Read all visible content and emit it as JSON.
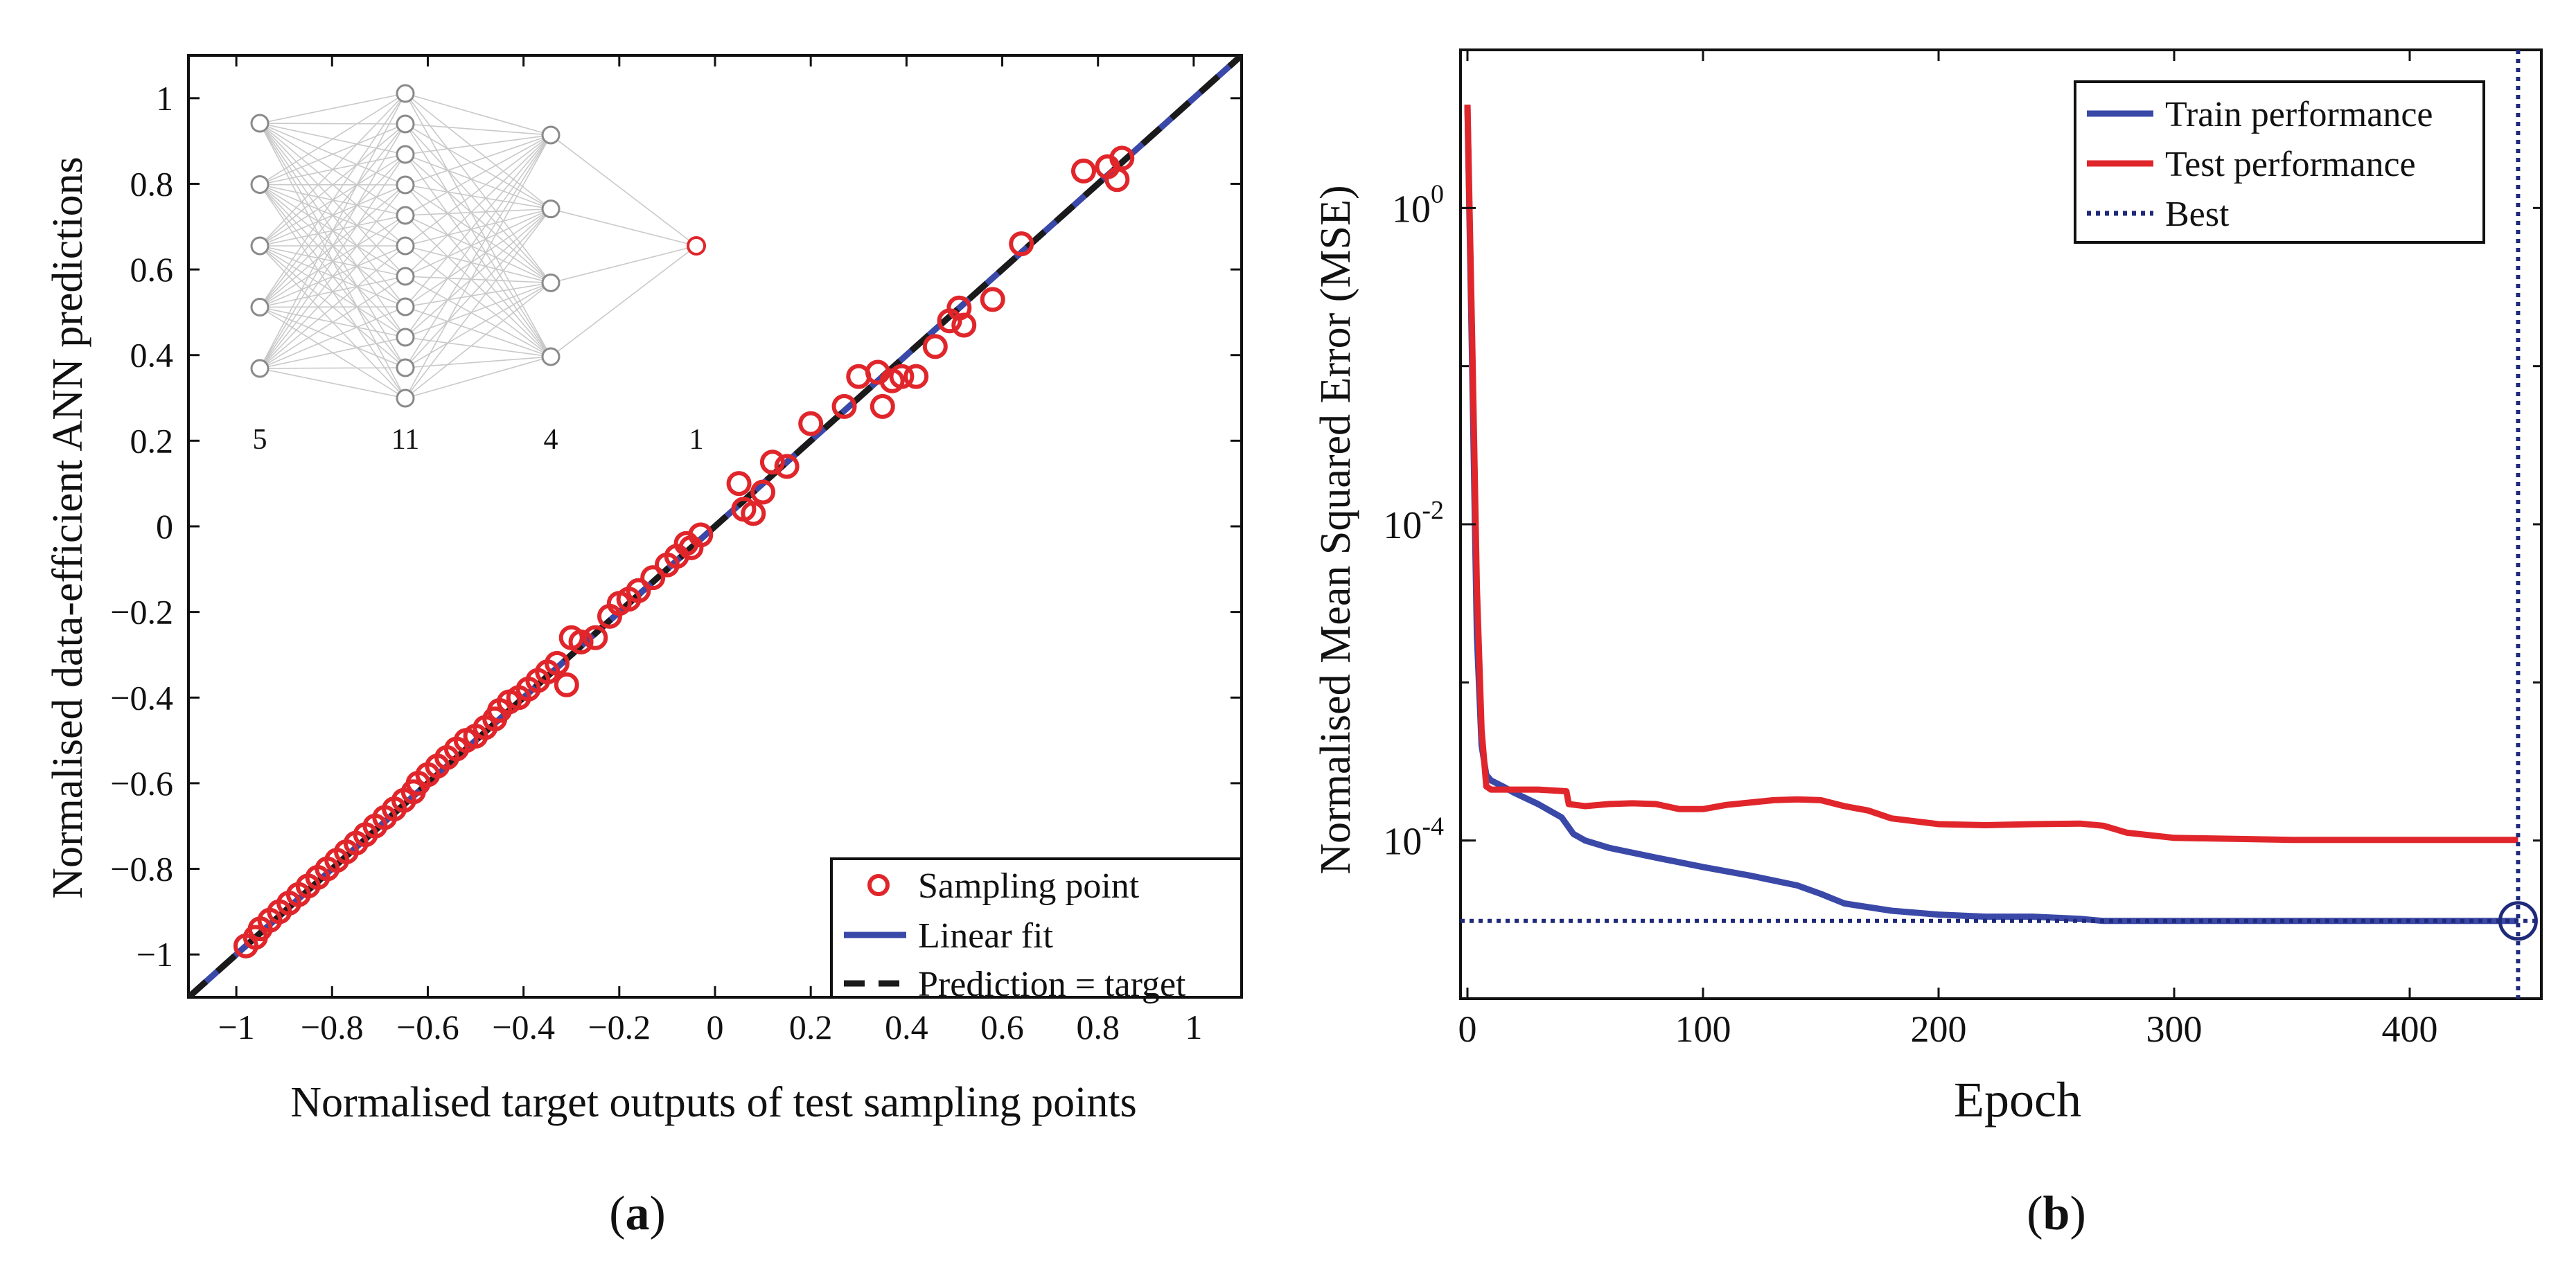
{
  "chart_data": [
    {
      "id": "a",
      "type": "scatter",
      "panel_label": "a",
      "xlabel": "Normalised target outputs of test sampling points",
      "ylabel": "Normalised data-efficient ANN predictions",
      "xlim": [
        -1.1,
        1.1
      ],
      "ylim": [
        -1.1,
        1.1
      ],
      "xticks": [
        -1,
        -0.8,
        -0.6,
        -0.4,
        -0.2,
        0,
        0.2,
        0.4,
        0.6,
        0.8,
        1
      ],
      "xtick_labels": [
        "−1",
        "−0.8",
        "−0.6",
        "−0.4",
        "−0.2",
        "0",
        "0.2",
        "0.4",
        "0.6",
        "0.8",
        "1"
      ],
      "yticks": [
        -1,
        -0.8,
        -0.6,
        -0.4,
        -0.2,
        0,
        0.2,
        0.4,
        0.6,
        0.8,
        1
      ],
      "ytick_labels": [
        "−1",
        "−0.8",
        "−0.6",
        "−0.4",
        "−0.2",
        "0",
        "0.2",
        "0.4",
        "0.6",
        "0.8",
        "1"
      ],
      "legend_position": "bottom-right",
      "series": [
        {
          "name": "Sampling point",
          "kind": "markers",
          "color": "#e0262b",
          "points": [
            [
              -0.98,
              -0.98
            ],
            [
              -0.96,
              -0.96
            ],
            [
              -0.95,
              -0.94
            ],
            [
              -0.93,
              -0.92
            ],
            [
              -0.91,
              -0.9
            ],
            [
              -0.89,
              -0.88
            ],
            [
              -0.87,
              -0.86
            ],
            [
              -0.85,
              -0.84
            ],
            [
              -0.83,
              -0.82
            ],
            [
              -0.81,
              -0.8
            ],
            [
              -0.79,
              -0.78
            ],
            [
              -0.77,
              -0.76
            ],
            [
              -0.75,
              -0.74
            ],
            [
              -0.73,
              -0.72
            ],
            [
              -0.71,
              -0.7
            ],
            [
              -0.69,
              -0.68
            ],
            [
              -0.67,
              -0.66
            ],
            [
              -0.65,
              -0.64
            ],
            [
              -0.63,
              -0.62
            ],
            [
              -0.62,
              -0.6
            ],
            [
              -0.6,
              -0.58
            ],
            [
              -0.58,
              -0.56
            ],
            [
              -0.56,
              -0.54
            ],
            [
              -0.54,
              -0.52
            ],
            [
              -0.52,
              -0.5
            ],
            [
              -0.5,
              -0.49
            ],
            [
              -0.48,
              -0.47
            ],
            [
              -0.46,
              -0.45
            ],
            [
              -0.45,
              -0.43
            ],
            [
              -0.43,
              -0.41
            ],
            [
              -0.41,
              -0.4
            ],
            [
              -0.39,
              -0.38
            ],
            [
              -0.37,
              -0.36
            ],
            [
              -0.35,
              -0.34
            ],
            [
              -0.33,
              -0.32
            ],
            [
              -0.31,
              -0.37
            ],
            [
              -0.3,
              -0.26
            ],
            [
              -0.28,
              -0.27
            ],
            [
              -0.25,
              -0.26
            ],
            [
              -0.22,
              -0.21
            ],
            [
              -0.2,
              -0.18
            ],
            [
              -0.18,
              -0.17
            ],
            [
              -0.16,
              -0.15
            ],
            [
              -0.13,
              -0.12
            ],
            [
              -0.1,
              -0.09
            ],
            [
              -0.08,
              -0.07
            ],
            [
              -0.06,
              -0.04
            ],
            [
              -0.05,
              -0.05
            ],
            [
              -0.03,
              -0.02
            ],
            [
              0.05,
              0.1
            ],
            [
              0.06,
              0.04
            ],
            [
              0.08,
              0.03
            ],
            [
              0.1,
              0.08
            ],
            [
              0.12,
              0.15
            ],
            [
              0.15,
              0.14
            ],
            [
              0.2,
              0.24
            ],
            [
              0.27,
              0.28
            ],
            [
              0.3,
              0.35
            ],
            [
              0.34,
              0.36
            ],
            [
              0.35,
              0.28
            ],
            [
              0.37,
              0.34
            ],
            [
              0.39,
              0.35
            ],
            [
              0.42,
              0.35
            ],
            [
              0.46,
              0.42
            ],
            [
              0.49,
              0.48
            ],
            [
              0.51,
              0.51
            ],
            [
              0.52,
              0.47
            ],
            [
              0.58,
              0.53
            ],
            [
              0.64,
              0.66
            ],
            [
              0.77,
              0.83
            ],
            [
              0.82,
              0.84
            ],
            [
              0.84,
              0.81
            ],
            [
              0.85,
              0.86
            ]
          ]
        },
        {
          "name": "Linear fit",
          "kind": "line",
          "color": "#3a48a8",
          "x": [
            -1.1,
            1.1
          ],
          "y": [
            -1.1,
            1.1
          ]
        },
        {
          "name": "Prediction = target",
          "kind": "dashed-line",
          "color": "#1a1a1a",
          "x": [
            -1.1,
            1.1
          ],
          "y": [
            -1.1,
            1.1
          ]
        }
      ],
      "inset_network": {
        "layers": [
          5,
          11,
          4,
          1
        ],
        "layer_labels": [
          "5",
          "11",
          "4",
          "1"
        ]
      }
    },
    {
      "id": "b",
      "type": "line",
      "panel_label": "b",
      "xlabel": "Epoch",
      "ylabel": "Normalised Mean Squared Error (MSE)",
      "xlim": [
        0,
        450
      ],
      "ylim": [
        1e-05,
        10
      ],
      "yscale": "log",
      "xticks": [
        0,
        100,
        200,
        300,
        400
      ],
      "xtick_labels": [
        "0",
        "100",
        "200",
        "300",
        "400"
      ],
      "yticks": [
        0.0001,
        0.01,
        1
      ],
      "ytick_labels": [
        {
          "base": "10",
          "exp": "-4"
        },
        {
          "base": "10",
          "exp": "-2"
        },
        {
          "base": "10",
          "exp": "0"
        }
      ],
      "legend_position": "top-right",
      "series": [
        {
          "name": "Train performance",
          "color": "#3a48a8",
          "x": [
            0,
            2,
            4,
            6,
            8,
            10,
            15,
            20,
            30,
            40,
            45,
            50,
            60,
            80,
            100,
            120,
            140,
            150,
            160,
            180,
            200,
            220,
            240,
            260,
            270,
            280,
            300,
            350,
            400,
            446
          ],
          "y": [
            4.5,
            0.1,
            0.002,
            0.0004,
            0.00026,
            0.00024,
            0.00022,
            0.0002,
            0.00017,
            0.00014,
            0.00011,
            0.0001,
            9e-05,
            7.8e-05,
            6.8e-05,
            6e-05,
            5.2e-05,
            4.6e-05,
            4e-05,
            3.6e-05,
            3.4e-05,
            3.3e-05,
            3.3e-05,
            3.2e-05,
            3.1e-05,
            3.1e-05,
            3.1e-05,
            3.1e-05,
            3.1e-05,
            3.1e-05
          ]
        },
        {
          "name": "Test performance",
          "color": "#e0262b",
          "x": [
            0,
            2,
            4,
            6,
            8,
            10,
            20,
            30,
            42,
            43,
            50,
            60,
            70,
            80,
            90,
            100,
            110,
            130,
            140,
            150,
            160,
            170,
            180,
            200,
            220,
            240,
            260,
            270,
            280,
            300,
            350,
            400,
            446
          ],
          "y": [
            4.5,
            0.15,
            0.004,
            0.0005,
            0.00022,
            0.00021,
            0.00021,
            0.00021,
            0.000205,
            0.00017,
            0.000165,
            0.00017,
            0.000172,
            0.00017,
            0.000158,
            0.000158,
            0.000168,
            0.00018,
            0.000182,
            0.00018,
            0.000165,
            0.000155,
            0.000138,
            0.000127,
            0.000125,
            0.000127,
            0.000128,
            0.000124,
            0.000112,
            0.000104,
            0.000101,
            0.000101,
            0.000101
          ]
        },
        {
          "name": "Best",
          "kind": "dotted",
          "color": "#1f2a7a",
          "best_epoch": 446,
          "best_value": 3.1e-05
        }
      ]
    }
  ]
}
